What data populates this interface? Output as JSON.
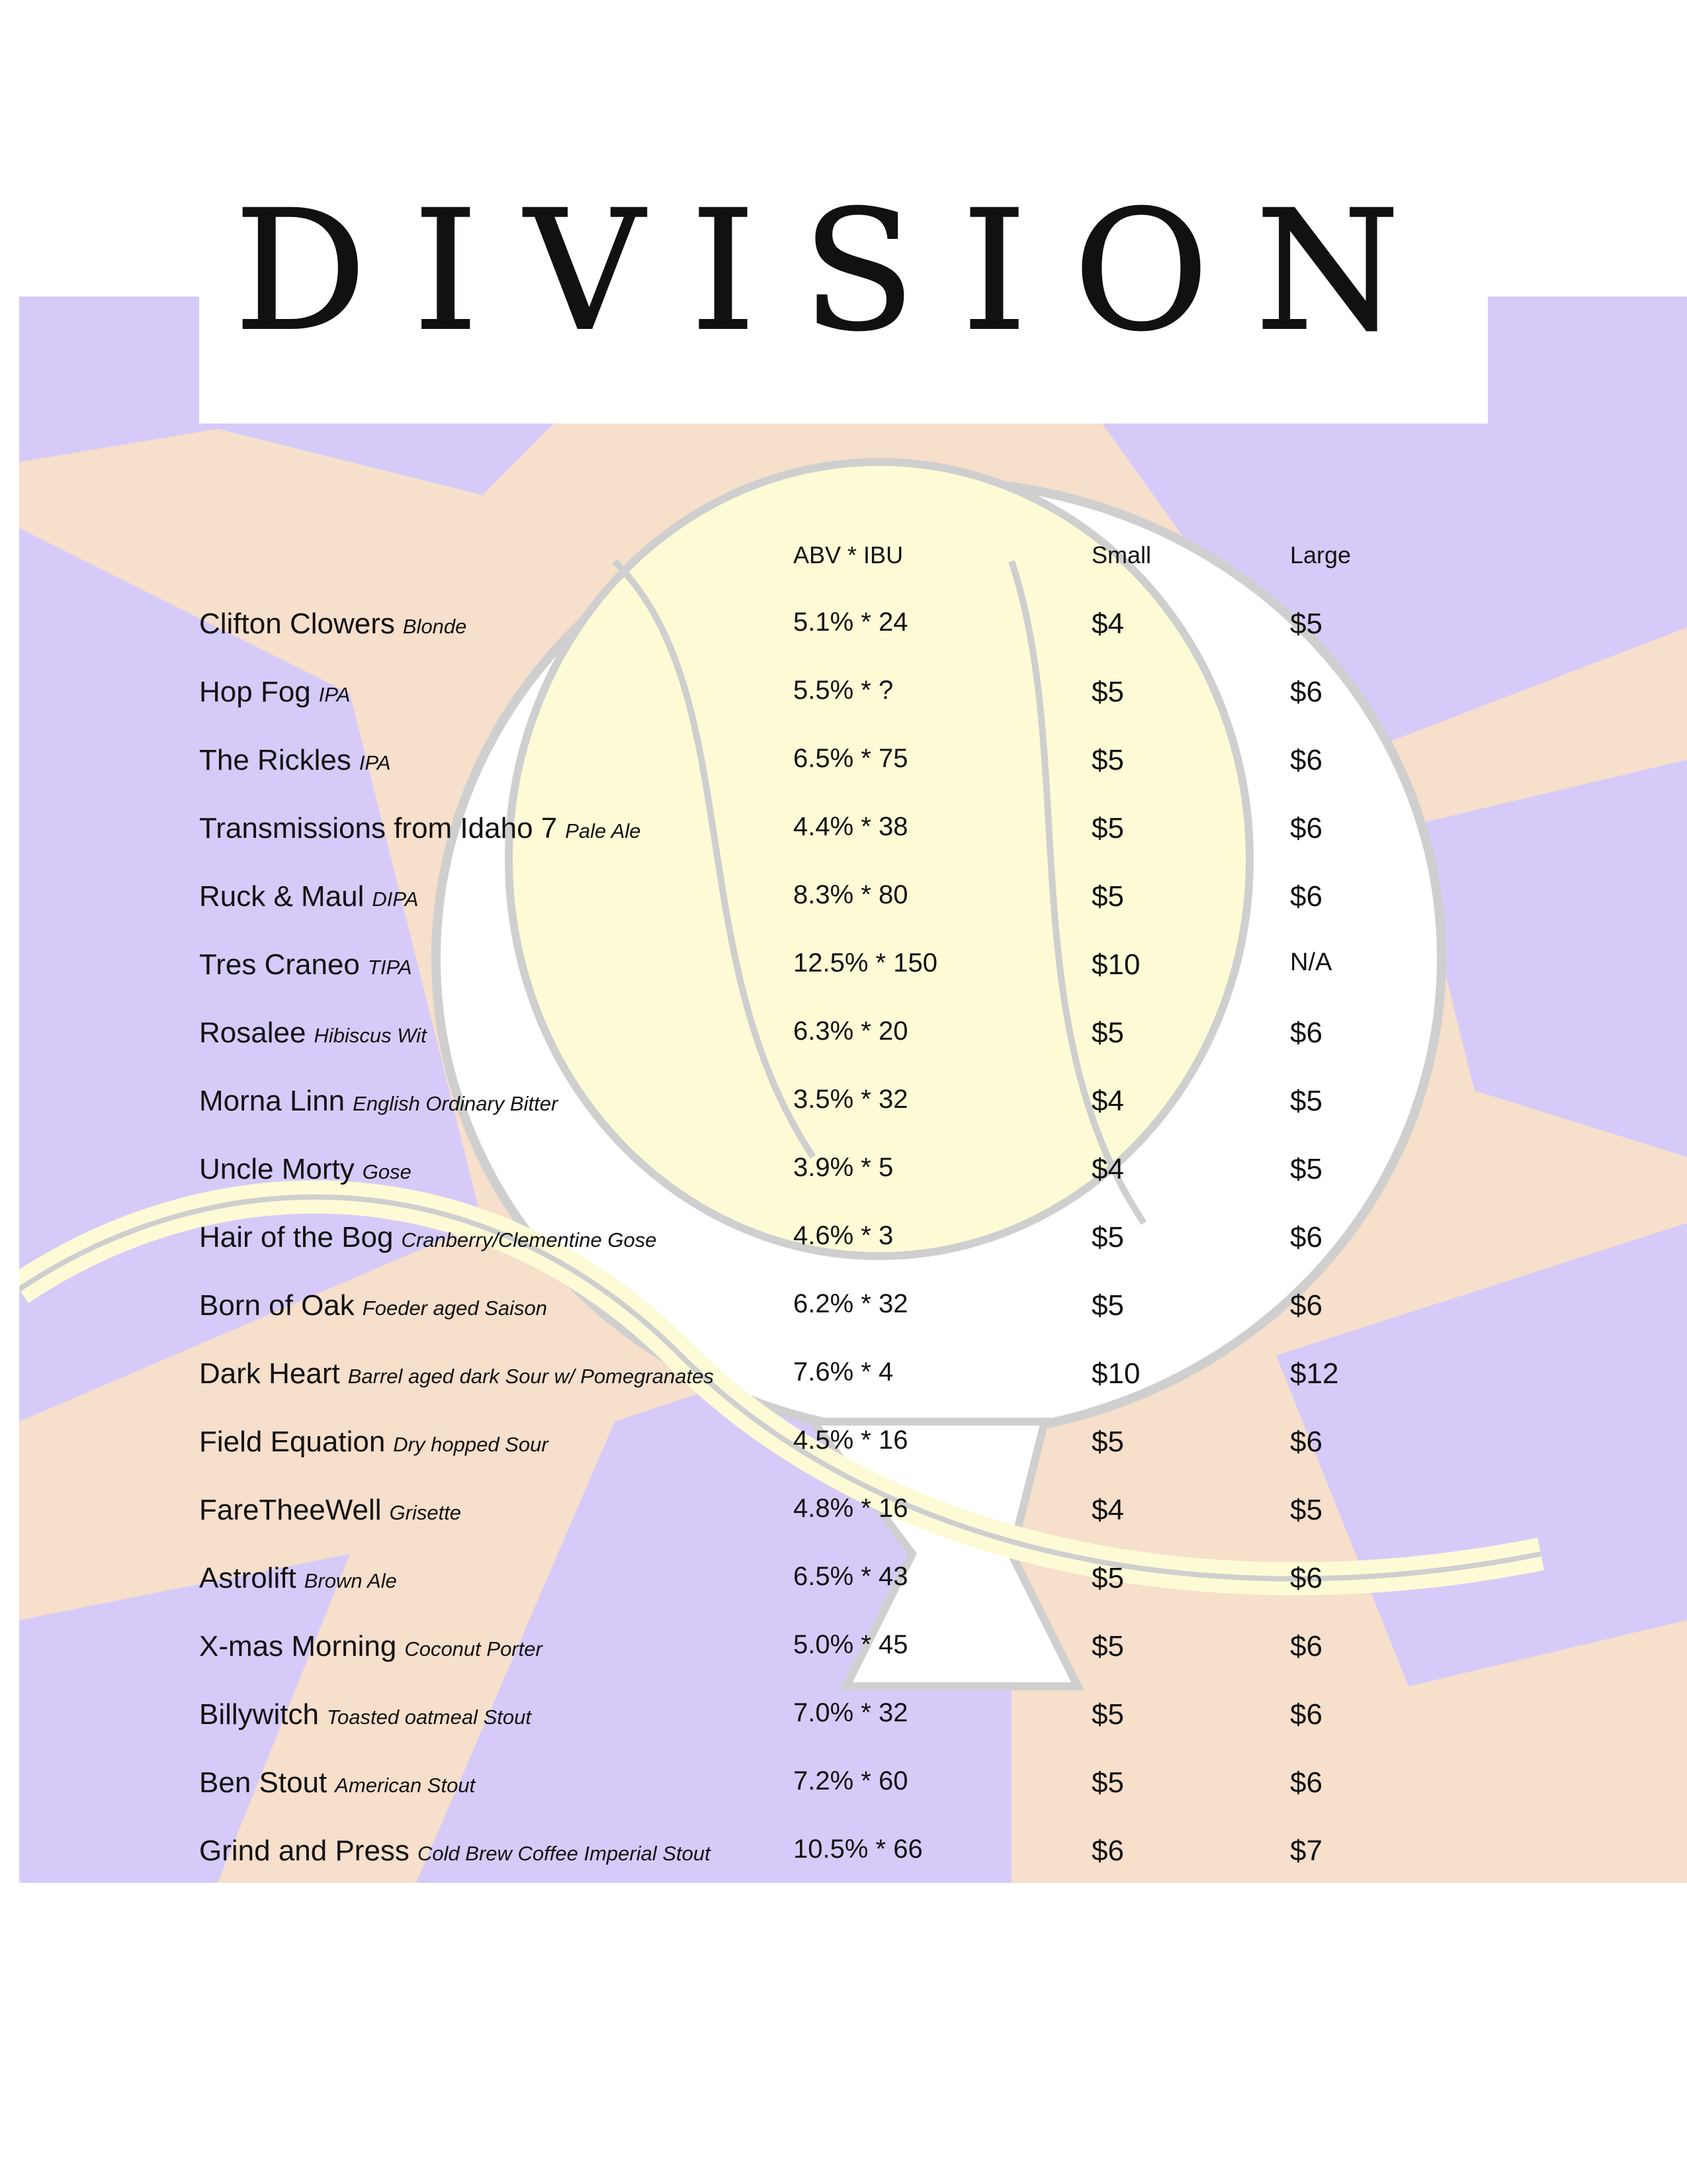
{
  "logo_text": "DIVISION",
  "colors": {
    "lavender": "#d6cbf8",
    "peach": "#f6dfcb",
    "pale_yellow": "#fdfbd6",
    "outline": "#c9c9c9"
  },
  "headers": {
    "abv_ibu": "ABV * IBU",
    "small": "Small",
    "large": "Large"
  },
  "beers": [
    {
      "name": "Clifton Clowers",
      "style": "Blonde",
      "abv_ibu": "5.1% * 24",
      "small": "$4",
      "large": "$5"
    },
    {
      "name": "Hop Fog",
      "style": "IPA",
      "abv_ibu": "5.5% * ?",
      "small": "$5",
      "large": "$6"
    },
    {
      "name": "The Rickles",
      "style": "IPA",
      "abv_ibu": "6.5% * 75",
      "small": "$5",
      "large": "$6"
    },
    {
      "name": "Transmissions from Idaho 7",
      "style": "Pale Ale",
      "abv_ibu": "4.4% * 38",
      "small": "$5",
      "large": "$6"
    },
    {
      "name": "Ruck & Maul",
      "style": "DIPA",
      "abv_ibu": "8.3% * 80",
      "small": "$5",
      "large": "$6"
    },
    {
      "name": "Tres Craneo",
      "style": "TIPA",
      "abv_ibu": "12.5% * 150",
      "small": "$10",
      "large": "N/A"
    },
    {
      "name": "Rosalee",
      "style": "Hibiscus Wit",
      "abv_ibu": "6.3% * 20",
      "small": "$5",
      "large": "$6"
    },
    {
      "name": "Morna Linn",
      "style": "English Ordinary Bitter",
      "abv_ibu": "3.5% * 32",
      "small": "$4",
      "large": "$5"
    },
    {
      "name": "Uncle Morty",
      "style": "Gose",
      "abv_ibu": "3.9% * 5",
      "small": "$4",
      "large": "$5"
    },
    {
      "name": "Hair of the Bog",
      "style": "Cranberry/Clementine Gose",
      "abv_ibu": "4.6% * 3",
      "small": "$5",
      "large": "$6"
    },
    {
      "name": "Born of Oak",
      "style": "Foeder aged Saison",
      "abv_ibu": "6.2% * 32",
      "small": "$5",
      "large": "$6"
    },
    {
      "name": "Dark Heart",
      "style": "Barrel aged dark Sour w/ Pomegranates",
      "abv_ibu": "7.6% * 4",
      "small": "$10",
      "large": "$12"
    },
    {
      "name": "Field Equation",
      "style": "Dry hopped Sour",
      "abv_ibu": "4.5% * 16",
      "small": "$5",
      "large": "$6"
    },
    {
      "name": "FareTheeWell",
      "style": "Grisette",
      "abv_ibu": "4.8% * 16",
      "small": "$4",
      "large": "$5"
    },
    {
      "name": "Astrolift",
      "style": "Brown Ale",
      "abv_ibu": "6.5% * 43",
      "small": "$5",
      "large": "$6"
    },
    {
      "name": "X-mas Morning",
      "style": "Coconut Porter",
      "abv_ibu": "5.0% * 45",
      "small": "$5",
      "large": "$6"
    },
    {
      "name": "Billywitch",
      "style": "Toasted oatmeal Stout",
      "abv_ibu": "7.0% * 32",
      "small": "$5",
      "large": "$6"
    },
    {
      "name": "Ben Stout",
      "style": "American Stout",
      "abv_ibu": "7.2% * 60",
      "small": "$5",
      "large": "$6"
    },
    {
      "name": "Grind and Press",
      "style": "Cold Brew Coffee Imperial Stout",
      "abv_ibu": "10.5% * 66",
      "small": "$6",
      "large": "$7"
    }
  ]
}
